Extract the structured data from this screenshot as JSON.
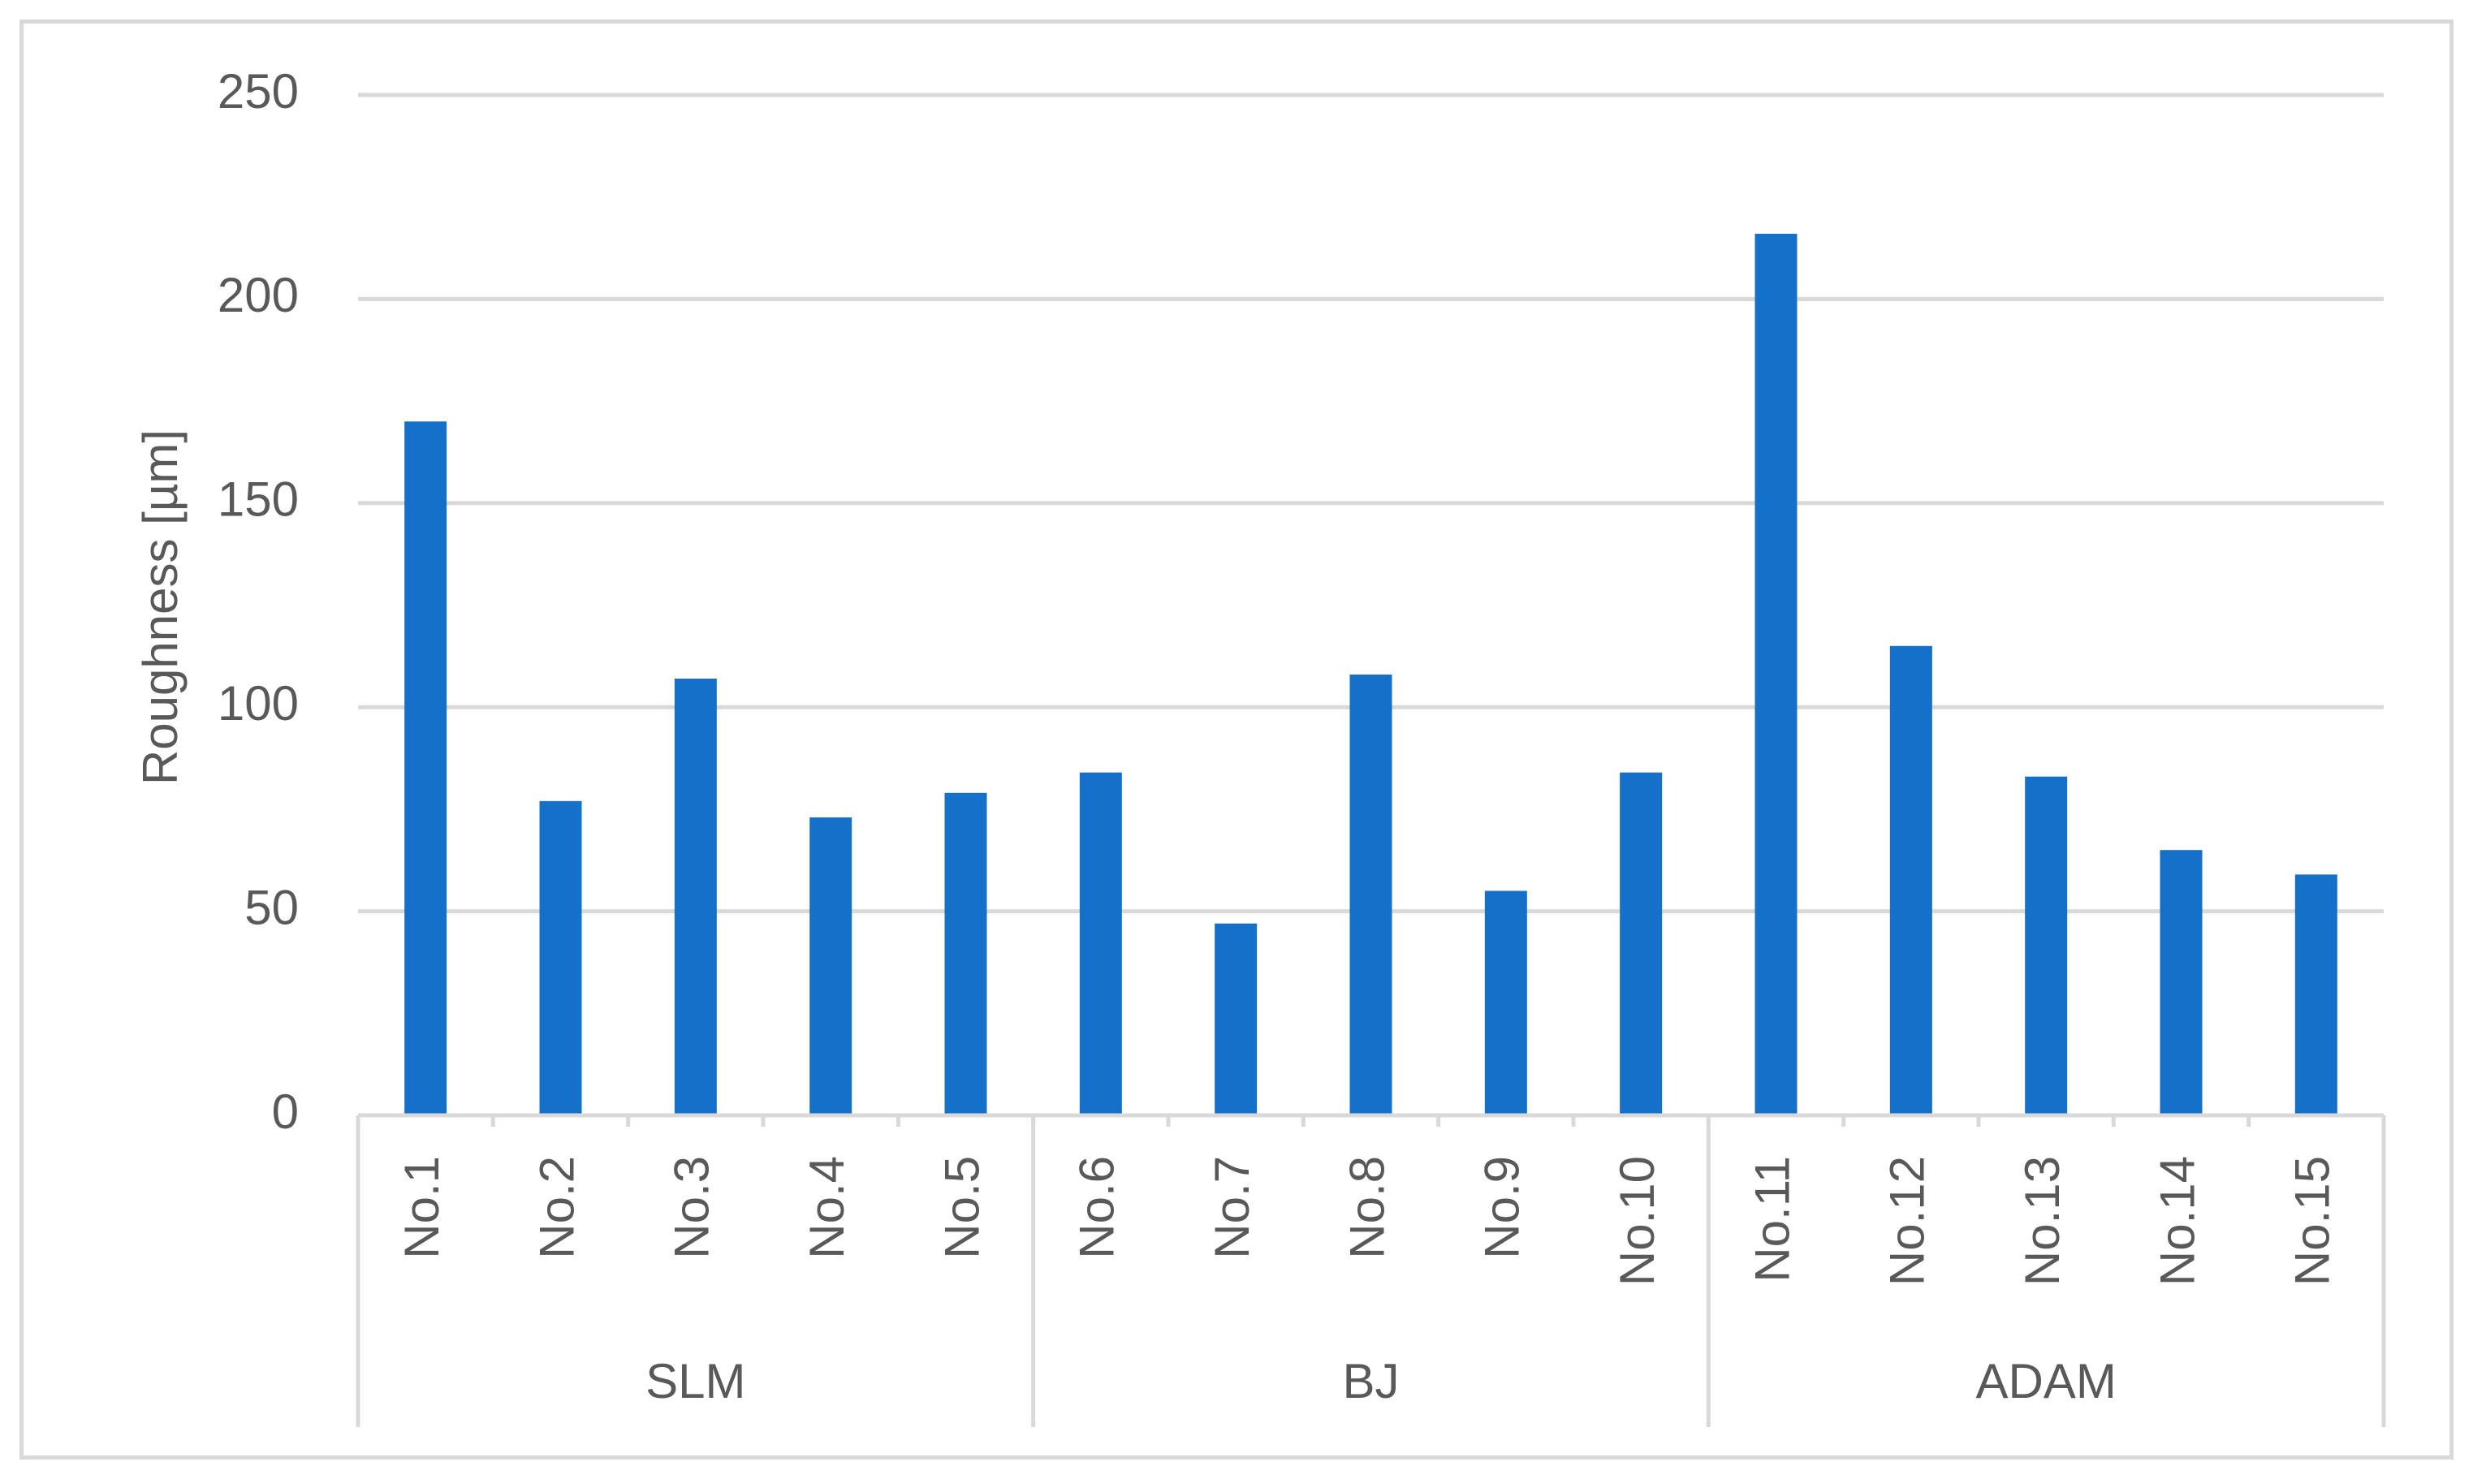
{
  "chart_data": {
    "type": "bar",
    "title": "",
    "xlabel": "",
    "ylabel": "Roughness [µm]",
    "ylim": [
      0,
      250
    ],
    "yticks": [
      0,
      50,
      100,
      150,
      200,
      250
    ],
    "grid": true,
    "legend": "none",
    "bar_color": "#1470C8",
    "categories": [
      "No.1",
      "No.2",
      "No.3",
      "No.4",
      "No.5",
      "No.6",
      "No.7",
      "No.8",
      "No.9",
      "No.10",
      "No.11",
      "No.12",
      "No.13",
      "No.14",
      "No.15"
    ],
    "groups": [
      {
        "label": "SLM",
        "members": [
          "No.1",
          "No.2",
          "No.3",
          "No.4",
          "No.5"
        ]
      },
      {
        "label": "BJ",
        "members": [
          "No.6",
          "No.7",
          "No.8",
          "No.9",
          "No.10"
        ]
      },
      {
        "label": "ADAM",
        "members": [
          "No.11",
          "No.12",
          "No.13",
          "No.14",
          "No.15"
        ]
      }
    ],
    "series": [
      {
        "values": [
          170,
          77,
          107,
          73,
          79,
          84,
          47,
          108,
          55,
          84,
          216,
          115,
          83,
          65,
          59
        ]
      }
    ]
  }
}
